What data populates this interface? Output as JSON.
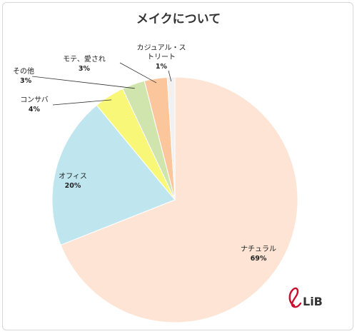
{
  "chart_data": {
    "type": "pie",
    "title": "メイクについて",
    "slices": [
      {
        "label": "ナチュラル",
        "value": 69,
        "value_label": "69%",
        "color": "#fde4d4"
      },
      {
        "label": "オフィス",
        "value": 20,
        "value_label": "20%",
        "color": "#bfe6ef"
      },
      {
        "label": "コンサバ",
        "value": 4,
        "value_label": "4%",
        "color": "#f8f778"
      },
      {
        "label": "その他",
        "value": 3,
        "value_label": "3%",
        "color": "#cfe5ad"
      },
      {
        "label": "モテ、愛され",
        "value": 3,
        "value_label": "3%",
        "color": "#fbc69c"
      },
      {
        "label": "カジュアル・ストリート",
        "label_lines": [
          "カジュアル・ス",
          "トリート"
        ],
        "value": 1,
        "value_label": "1%",
        "color": "#f1f1f1"
      }
    ],
    "start_angle_deg": 0,
    "direction": "clockwise",
    "legend": "none"
  },
  "brand": {
    "logo_text": "LiB",
    "logo_color": "#c8102e",
    "logo_accent": "#1b3f8f"
  }
}
